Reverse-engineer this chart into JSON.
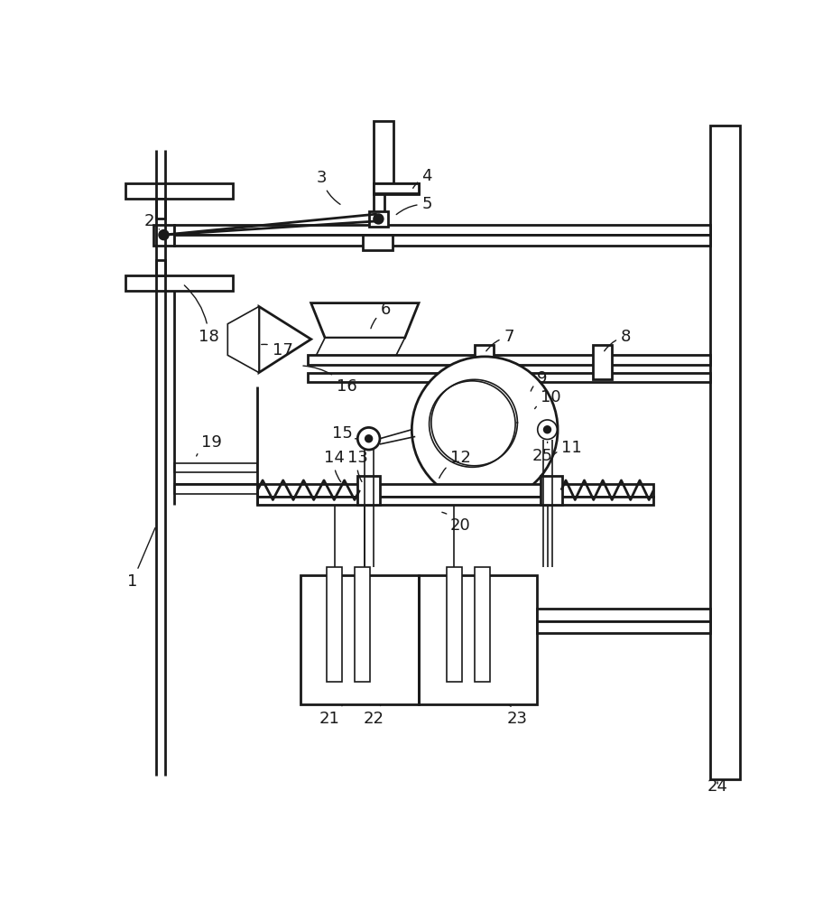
{
  "bg_color": "#ffffff",
  "line_color": "#1a1a1a",
  "figsize": [
    9.22,
    10.0
  ],
  "dpi": 100
}
